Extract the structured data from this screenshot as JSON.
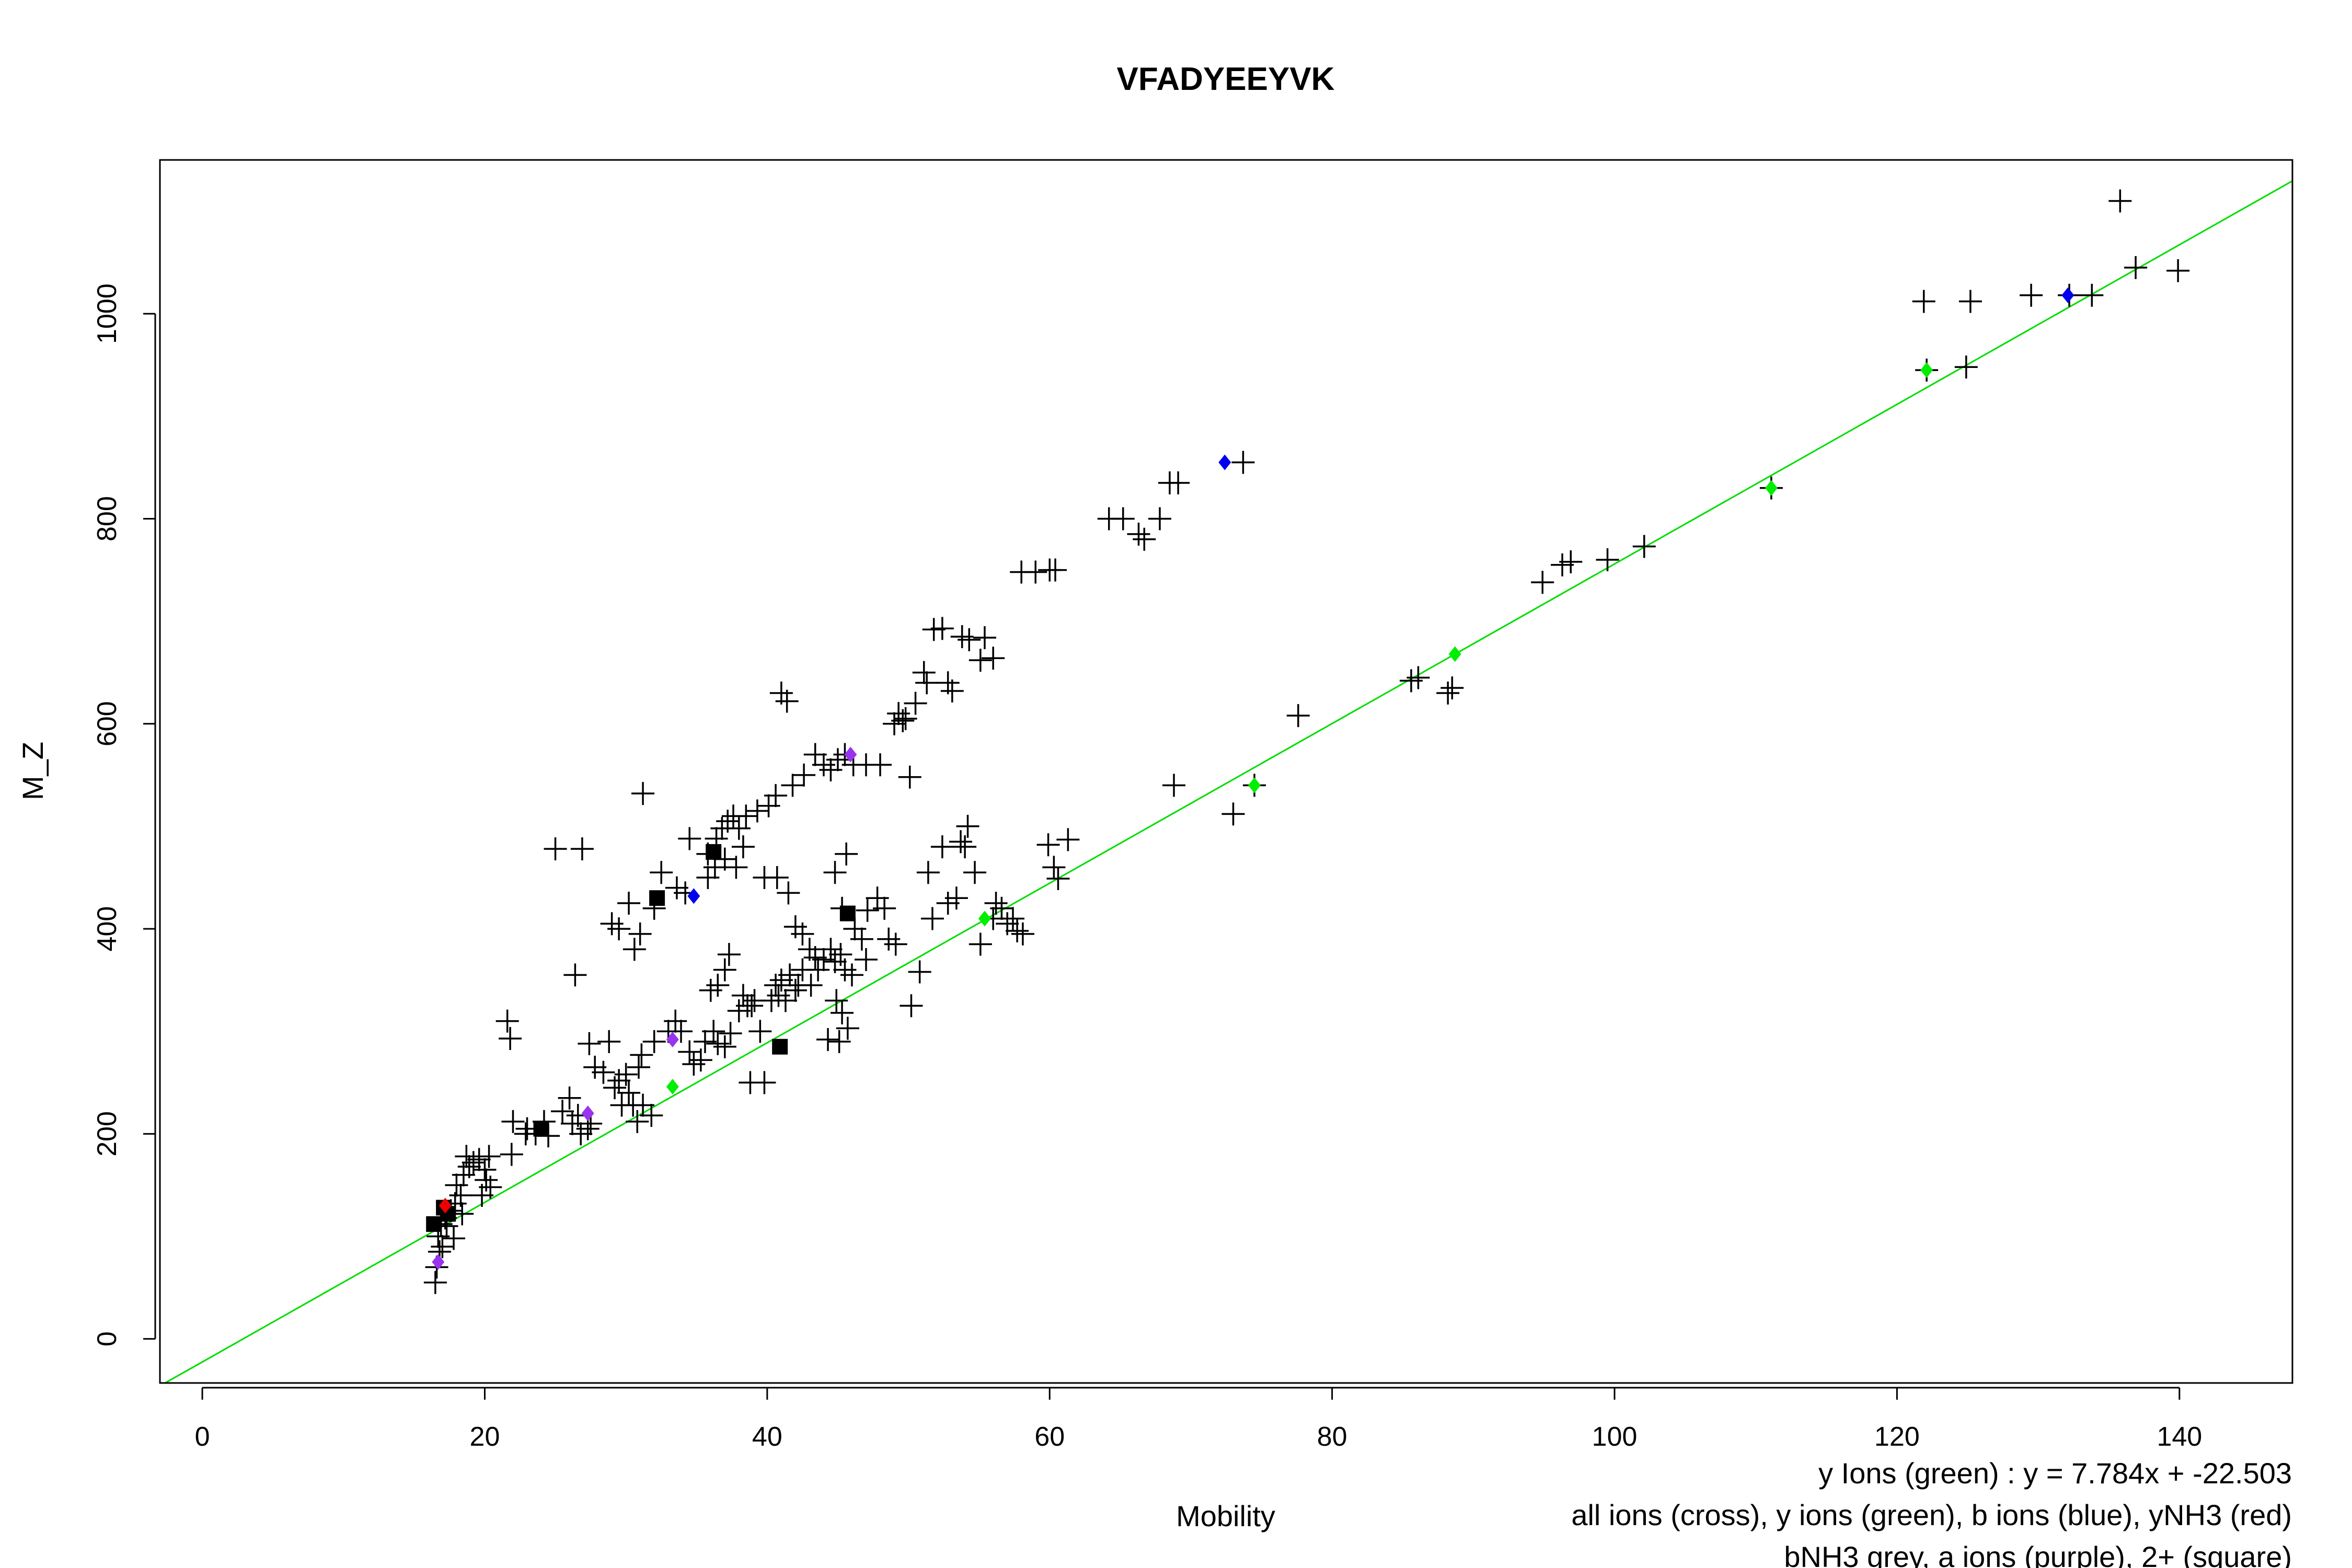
{
  "chart_data": {
    "type": "scatter",
    "title": "VFADYEEYVK",
    "xlabel": "Mobility",
    "ylabel": "M_Z",
    "xlim": [
      -3,
      148
    ],
    "ylim": [
      -43,
      1150
    ],
    "x_ticks": [
      0,
      20,
      40,
      60,
      80,
      100,
      120,
      140
    ],
    "y_ticks": [
      0,
      200,
      400,
      600,
      800,
      1000
    ],
    "grid": false,
    "legend": "none",
    "fit_line": {
      "name": "y Ions (green)",
      "slope": 7.784,
      "intercept": -22.503,
      "color": "#00dd00"
    },
    "annotations": [
      "y Ions (green) : y = 7.784x + -22.503",
      "all ions (cross), y ions (green), b ions (blue), yNH3 (red)",
      "bNH3 grey, a ions (purple), 2+ (square)"
    ],
    "colors": {
      "cross": "#000000",
      "y_ion": "#00ee00",
      "b_ion": "#0000ee",
      "yNH3": "#ee0000",
      "a_ion": "#9933ee",
      "square": "#000000"
    },
    "series": [
      {
        "symbol": "cross",
        "points": [
          [
            16.5,
            55
          ],
          [
            16.6,
            70
          ],
          [
            16.8,
            85
          ],
          [
            17.0,
            90
          ],
          [
            16.7,
            100
          ],
          [
            16.9,
            112
          ],
          [
            17.2,
            118
          ],
          [
            17.6,
            125
          ],
          [
            17.9,
            132
          ],
          [
            18.3,
            140
          ],
          [
            18.0,
            150
          ],
          [
            18.5,
            160
          ],
          [
            18.9,
            168
          ],
          [
            19.2,
            172
          ],
          [
            18.7,
            178
          ],
          [
            19.6,
            175
          ],
          [
            20.0,
            165
          ],
          [
            20.1,
            155
          ],
          [
            20.4,
            148
          ],
          [
            19.8,
            140
          ],
          [
            18.4,
            122
          ],
          [
            17.3,
            110
          ],
          [
            17.8,
            98
          ],
          [
            20.3,
            178
          ],
          [
            21.9,
            180
          ],
          [
            22.0,
            212
          ],
          [
            22.9,
            200
          ],
          [
            24.2,
            212
          ],
          [
            24.5,
            198
          ],
          [
            26.0,
            235
          ],
          [
            26.2,
            210
          ],
          [
            26.8,
            200
          ],
          [
            27.4,
            288
          ],
          [
            27.5,
            210
          ],
          [
            27.8,
            265
          ],
          [
            28.4,
            260
          ],
          [
            28.8,
            290
          ],
          [
            29.2,
            245
          ],
          [
            29.5,
            252
          ],
          [
            30.0,
            258
          ],
          [
            30.2,
            240
          ],
          [
            29.7,
            228
          ],
          [
            30.5,
            228
          ],
          [
            30.8,
            212
          ],
          [
            31.2,
            228
          ],
          [
            31.8,
            218
          ],
          [
            30.9,
            265
          ],
          [
            31.1,
            277
          ],
          [
            32.0,
            290
          ],
          [
            33.0,
            300
          ],
          [
            33.5,
            310
          ],
          [
            33.9,
            300
          ],
          [
            34.5,
            280
          ],
          [
            34.8,
            268
          ],
          [
            35.3,
            272
          ],
          [
            35.6,
            290
          ],
          [
            36.2,
            300
          ],
          [
            36.5,
            288
          ],
          [
            37.0,
            285
          ],
          [
            37.4,
            298
          ],
          [
            38.0,
            320
          ],
          [
            38.3,
            335
          ],
          [
            38.9,
            325
          ],
          [
            39.5,
            300
          ],
          [
            38.8,
            250
          ],
          [
            39.8,
            250
          ],
          [
            40.3,
            330
          ],
          [
            40.6,
            345
          ],
          [
            41.0,
            350
          ],
          [
            41.6,
            355
          ],
          [
            42.0,
            340
          ],
          [
            42.5,
            360
          ],
          [
            43.0,
            380
          ],
          [
            43.4,
            372
          ],
          [
            44.0,
            370
          ],
          [
            44.5,
            380
          ],
          [
            44.8,
            368
          ],
          [
            45.2,
            375
          ],
          [
            45.5,
            360
          ],
          [
            46.0,
            355
          ],
          [
            44.9,
            330
          ],
          [
            45.3,
            318
          ],
          [
            45.7,
            303
          ],
          [
            44.3,
            292
          ],
          [
            45.1,
            290
          ],
          [
            36.0,
            340
          ],
          [
            36.5,
            345
          ],
          [
            37.0,
            360
          ],
          [
            37.3,
            375
          ],
          [
            26.4,
            355
          ],
          [
            29.0,
            405
          ],
          [
            29.5,
            400
          ],
          [
            30.2,
            425
          ],
          [
            30.6,
            380
          ],
          [
            31.0,
            395
          ],
          [
            32.0,
            420
          ],
          [
            31.2,
            532
          ],
          [
            32.5,
            455
          ],
          [
            33.6,
            440
          ],
          [
            34.2,
            435
          ],
          [
            34.5,
            488
          ],
          [
            35.8,
            473
          ],
          [
            36.4,
            488
          ],
          [
            36.8,
            498
          ],
          [
            37.2,
            505
          ],
          [
            37.6,
            510
          ],
          [
            38.0,
            498
          ],
          [
            38.5,
            510
          ],
          [
            39.3,
            515
          ],
          [
            40.1,
            520
          ],
          [
            40.6,
            530
          ],
          [
            41.0,
            630
          ],
          [
            41.4,
            622
          ],
          [
            41.8,
            540
          ],
          [
            42.6,
            550
          ],
          [
            43.4,
            570
          ],
          [
            44.0,
            560
          ],
          [
            44.5,
            555
          ],
          [
            45.0,
            565
          ],
          [
            45.5,
            570
          ],
          [
            46.1,
            560
          ],
          [
            47.0,
            560
          ],
          [
            48.0,
            560
          ],
          [
            49.0,
            600
          ],
          [
            49.3,
            610
          ],
          [
            49.8,
            605
          ],
          [
            50.1,
            548
          ],
          [
            50.5,
            620
          ],
          [
            51.1,
            650
          ],
          [
            51.3,
            640
          ],
          [
            51.8,
            692
          ],
          [
            52.4,
            693
          ],
          [
            52.8,
            640
          ],
          [
            53.1,
            632
          ],
          [
            53.8,
            685
          ],
          [
            54.3,
            682
          ],
          [
            55.4,
            684
          ],
          [
            55.1,
            662
          ],
          [
            56.0,
            664
          ],
          [
            49.6,
            603
          ],
          [
            58.0,
            748
          ],
          [
            59.0,
            748
          ],
          [
            60.0,
            750
          ],
          [
            60.4,
            750
          ],
          [
            64.2,
            800
          ],
          [
            65.2,
            800
          ],
          [
            66.3,
            785
          ],
          [
            66.7,
            780
          ],
          [
            67.8,
            800
          ],
          [
            68.5,
            835
          ],
          [
            69.1,
            835
          ],
          [
            73.7,
            855
          ],
          [
            25.0,
            478
          ],
          [
            26.9,
            478
          ],
          [
            39.8,
            450
          ],
          [
            40.7,
            450
          ],
          [
            41.5,
            435
          ],
          [
            42.0,
            402
          ],
          [
            42.5,
            395
          ],
          [
            43.6,
            360
          ],
          [
            21.6,
            310
          ],
          [
            21.8,
            293
          ],
          [
            44.8,
            455
          ],
          [
            45.6,
            473
          ],
          [
            45.3,
            420
          ],
          [
            46.2,
            400
          ],
          [
            46.7,
            390
          ],
          [
            47.1,
            418
          ],
          [
            47.8,
            430
          ],
          [
            48.3,
            420
          ],
          [
            48.6,
            390
          ],
          [
            49.1,
            385
          ],
          [
            47.0,
            370
          ],
          [
            50.2,
            325
          ],
          [
            50.8,
            358
          ],
          [
            51.4,
            455
          ],
          [
            51.7,
            410
          ],
          [
            52.4,
            480
          ],
          [
            52.8,
            425
          ],
          [
            53.4,
            430
          ],
          [
            53.7,
            485
          ],
          [
            54.0,
            480
          ],
          [
            54.2,
            500
          ],
          [
            54.7,
            455
          ],
          [
            55.1,
            385
          ],
          [
            56.2,
            425
          ],
          [
            56.6,
            420
          ],
          [
            57.0,
            405
          ],
          [
            57.4,
            410
          ],
          [
            57.7,
            398
          ],
          [
            58.1,
            395
          ],
          [
            56.0,
            410
          ],
          [
            59.9,
            482
          ],
          [
            60.3,
            460
          ],
          [
            60.6,
            449
          ],
          [
            61.3,
            487
          ],
          [
            77.6,
            608
          ],
          [
            68.8,
            540
          ],
          [
            73.0,
            512
          ],
          [
            74.5,
            540
          ],
          [
            85.6,
            642
          ],
          [
            86.1,
            645
          ],
          [
            88.2,
            630
          ],
          [
            88.5,
            635
          ],
          [
            94.9,
            738
          ],
          [
            96.3,
            755
          ],
          [
            96.9,
            758
          ],
          [
            99.5,
            760
          ],
          [
            102.1,
            773
          ],
          [
            111.1,
            830
          ],
          [
            121.9,
            1012
          ],
          [
            122.1,
            945
          ],
          [
            124.9,
            948
          ],
          [
            125.2,
            1012
          ],
          [
            129.5,
            1018
          ],
          [
            132.2,
            1018
          ],
          [
            133.8,
            1018
          ],
          [
            135.8,
            1110
          ],
          [
            136.9,
            1045
          ],
          [
            139.9,
            1042
          ],
          [
            35.8,
            450
          ],
          [
            36.3,
            460
          ],
          [
            37.0,
            468
          ],
          [
            37.8,
            460
          ],
          [
            38.3,
            480
          ],
          [
            38.6,
            325
          ],
          [
            39.1,
            330
          ],
          [
            40.8,
            335
          ],
          [
            41.3,
            330
          ],
          [
            42.2,
            345
          ],
          [
            43.1,
            345
          ],
          [
            23.0,
            205
          ],
          [
            23.6,
            200
          ],
          [
            25.5,
            222
          ],
          [
            26.6,
            218
          ],
          [
            27.3,
            205
          ]
        ]
      },
      {
        "symbol": "square",
        "points": [
          [
            16.4,
            112
          ],
          [
            17.1,
            128
          ],
          [
            17.4,
            122
          ],
          [
            24.0,
            205
          ],
          [
            32.2,
            430
          ],
          [
            36.2,
            475
          ],
          [
            40.9,
            285
          ],
          [
            45.7,
            415
          ]
        ]
      },
      {
        "symbol": "y_ion",
        "name": "y ions (green)",
        "points": [
          [
            33.3,
            246
          ],
          [
            55.4,
            410
          ],
          [
            74.5,
            540
          ],
          [
            88.7,
            668
          ],
          [
            111.1,
            830
          ],
          [
            122.1,
            945
          ]
        ]
      },
      {
        "symbol": "b_ion",
        "name": "b ions (blue)",
        "points": [
          [
            34.8,
            432
          ],
          [
            72.4,
            855
          ],
          [
            132.1,
            1018
          ]
        ]
      },
      {
        "symbol": "yNH3",
        "name": "yNH3 (red)",
        "points": [
          [
            17.2,
            130
          ]
        ]
      },
      {
        "symbol": "a_ion",
        "name": "a ions (purple)",
        "points": [
          [
            16.7,
            75
          ],
          [
            27.3,
            220
          ],
          [
            33.3,
            292
          ],
          [
            45.9,
            570
          ]
        ]
      }
    ]
  }
}
